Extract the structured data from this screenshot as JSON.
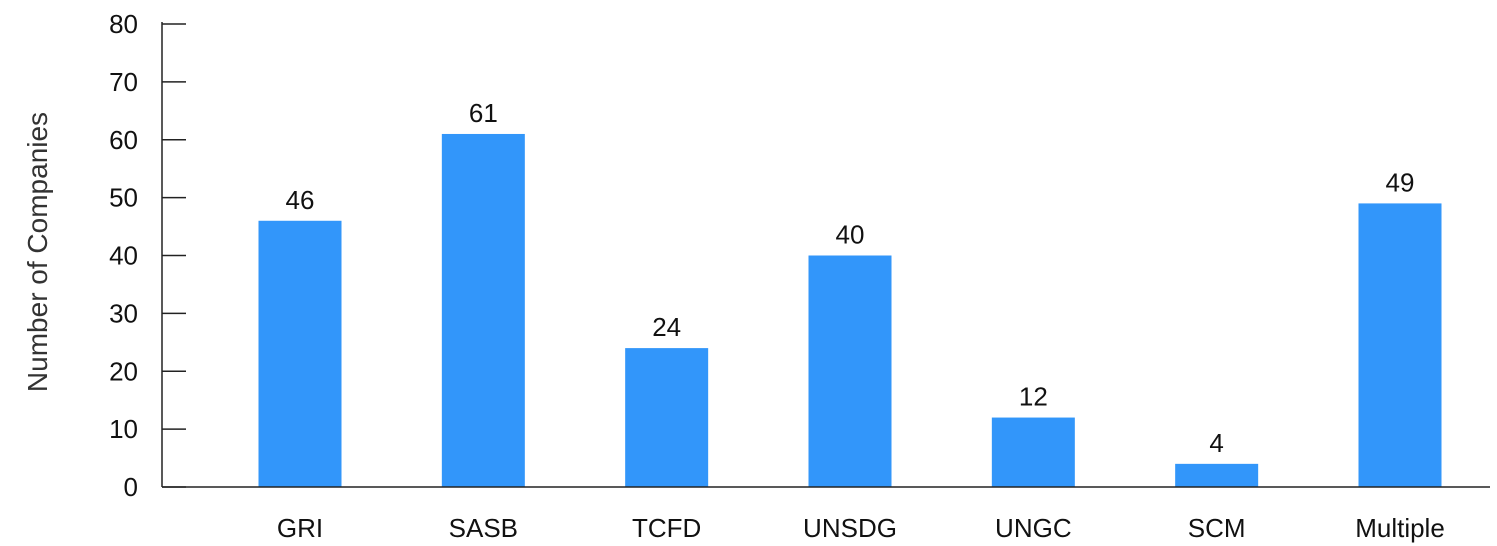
{
  "chart_data": {
    "type": "bar",
    "categories": [
      "GRI",
      "SASB",
      "TCFD",
      "UNSDG",
      "UNGC",
      "SCM",
      "Multiple"
    ],
    "values": [
      46,
      61,
      24,
      40,
      12,
      4,
      49
    ],
    "data_labels": [
      "46",
      "61",
      "24",
      "40",
      "12",
      "4",
      "49"
    ],
    "ylabel": "Number of Companies",
    "ylim": [
      0,
      80
    ],
    "yticks": [
      0,
      10,
      20,
      30,
      40,
      50,
      60,
      70,
      80
    ],
    "ytick_labels": [
      "0",
      "10",
      "20",
      "30",
      "40",
      "50",
      "60",
      "70",
      "80"
    ],
    "grid": false,
    "bar_color": "#3296fa"
  }
}
